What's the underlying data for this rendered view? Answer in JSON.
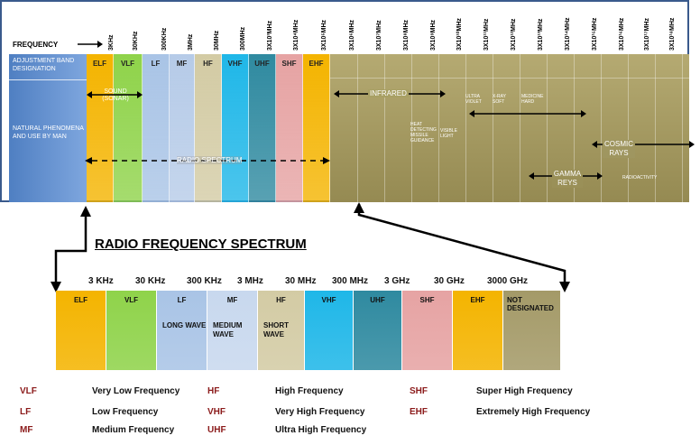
{
  "top": {
    "frequency_label": "FREQUENCY",
    "row_adjusted": "ADJUSTMENT BAND DESIGNATION",
    "row_natural": "NATURAL PHENOMENA AND USE BY MAN",
    "sound": "SOUND (SONAR)",
    "radio_spectrum": "RADIO SPECTRUM",
    "infrared": "INFRARED",
    "ultra_violet": "ULTRA VIOLET",
    "xray_soft": "X-RAY SOFT",
    "medicine_hard": "MEDICINE HARD",
    "heat": "HEAT DETECTING MISSILE GUIDANCE",
    "visible_light": "VISIBLE LIGHT",
    "cosmic_rays": "COSMIC RAYS",
    "gamma_rays": "GAMMA REYS",
    "radioactivity": "RADIOACTIVITY",
    "freq_ticks": [
      "3KHz",
      "30KHz",
      "300KHz",
      "3MHz",
      "30MHz",
      "300MHz",
      "3X10³MHz",
      "3X10⁴MHz",
      "3X10⁵MHz",
      "3X10⁶MHz",
      "3X10⁷MHz",
      "3X10⁸MHz",
      "3X10⁹MHz",
      "3X10¹⁰MHz",
      "3X10¹¹MHz",
      "3X10¹²MHz",
      "3X10¹³MHz",
      "3X10¹⁴MHz",
      "3X10¹⁵MHz",
      "3X10¹⁶MHz",
      "3X10¹⁷MHz",
      "3X10¹⁸MHz"
    ],
    "bands": [
      "ELF",
      "VLF",
      "LF",
      "MF",
      "HF",
      "VHF",
      "UHF",
      "SHF",
      "EHF"
    ]
  },
  "bottom": {
    "title": "RADIO FREQUENCY SPECTRUM",
    "freqs": [
      "3 KHz",
      "30 KHz",
      "300 KHz",
      "3 MHz",
      "30 MHz",
      "300 MHz",
      "3 GHz",
      "30 GHz",
      "3000 GHz"
    ],
    "bands": [
      {
        "label": "ELF",
        "desc": "",
        "color": "#f4b400"
      },
      {
        "label": "VLF",
        "desc": "",
        "color": "#8fd34a"
      },
      {
        "label": "LF",
        "desc": "LONG WAVE",
        "color": "#a9c4e6"
      },
      {
        "label": "MF",
        "desc": "MEDIUM WAVE",
        "color": "#c8d8ee"
      },
      {
        "label": "HF",
        "desc": "SHORT WAVE",
        "color": "#d3cba4"
      },
      {
        "label": "VHF",
        "desc": "",
        "color": "#1fb7e8"
      },
      {
        "label": "UHF",
        "desc": "",
        "color": "#2f8aa0"
      },
      {
        "label": "SHF",
        "desc": "",
        "color": "#e6a3a3"
      },
      {
        "label": "EHF",
        "desc": "",
        "color": "#f4b400"
      },
      {
        "label": "NOT DESIGNATED",
        "desc": "",
        "color": "#a49a68"
      }
    ]
  },
  "legend": [
    {
      "code": "VLF",
      "text": "Very Low Frequency"
    },
    {
      "code": "HF",
      "text": "High Frequency"
    },
    {
      "code": "SHF",
      "text": "Super High Frequency"
    },
    {
      "code": "LF",
      "text": "Low Frequency"
    },
    {
      "code": "VHF",
      "text": "Very High Frequency"
    },
    {
      "code": "EHF",
      "text": "Extremely High Frequency"
    },
    {
      "code": "MF",
      "text": "Medium Frequency"
    },
    {
      "code": "UHF",
      "text": "Ultra High Frequency"
    }
  ]
}
